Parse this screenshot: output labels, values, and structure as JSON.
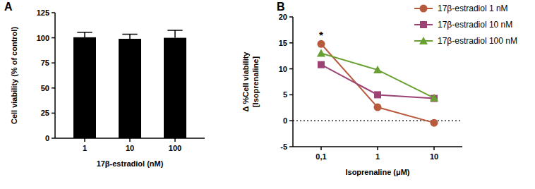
{
  "chart_data": [
    {
      "type": "bar",
      "title": "A",
      "xlabel": "17β-estradiol (nM)",
      "ylabel": "Cell viability (% of control)",
      "categories": [
        "1",
        "10",
        "100"
      ],
      "values": [
        100.5,
        99,
        100
      ],
      "errors": [
        5,
        4.5,
        7.5
      ],
      "color": "#000000",
      "ylim": [
        0,
        125
      ],
      "yticks": [
        0,
        25,
        50,
        75,
        100,
        125
      ],
      "grid": false
    },
    {
      "type": "line",
      "title": "B",
      "xlabel": "Isoprenaline (μM)",
      "ylabel": [
        "Δ %Cell viability",
        "[Isoprenaline]"
      ],
      "categories": [
        "0,1",
        "1",
        "10"
      ],
      "series": [
        {
          "name": "17β-estradiol 1 nM",
          "color": "#b85a3c",
          "marker": "circle",
          "line_style": "solid",
          "values": [
            14.8,
            2.6,
            -0.4
          ]
        },
        {
          "name": "17β-estradiol 10 nM",
          "color": "#9c4275",
          "marker": "square",
          "line_style": "solid",
          "values": [
            10.8,
            5.0,
            4.3
          ]
        },
        {
          "name": "17β-estradiol 100 nM",
          "color": "#69a032",
          "marker": "triangle",
          "line_style": "solid",
          "values": [
            13.0,
            9.8,
            4.4
          ]
        }
      ],
      "ylim": [
        -5,
        20
      ],
      "yticks": [
        -5,
        0,
        5,
        10,
        15,
        20
      ],
      "grid": false,
      "legend": "top-right",
      "reference_lines": [
        {
          "value": 0,
          "line_style": "dotted"
        }
      ],
      "annotations": [
        {
          "text": "*",
          "series": 0,
          "index": 0
        }
      ]
    }
  ]
}
